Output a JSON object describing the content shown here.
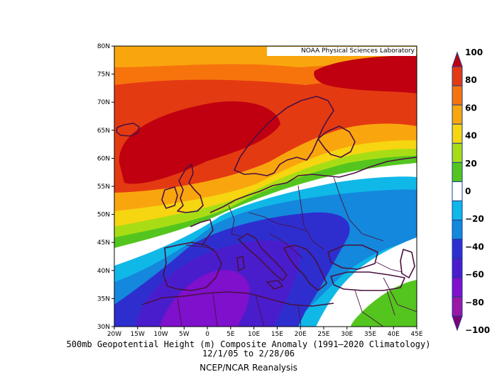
{
  "map": {
    "credit": "NOAA Physical Sciences Laboratory",
    "lat_labels": [
      "80N",
      "75N",
      "70N",
      "65N",
      "60N",
      "55N",
      "50N",
      "45N",
      "40N",
      "35N",
      "30N"
    ],
    "lon_labels": [
      "20W",
      "15W",
      "10W",
      "5W",
      "0",
      "5E",
      "10E",
      "15E",
      "20E",
      "25E",
      "30E",
      "35E",
      "40E",
      "45E"
    ],
    "extent": {
      "lon_min": -20,
      "lon_max": 45,
      "lat_min": 30,
      "lat_max": 80
    }
  },
  "colorbar": {
    "labels": [
      "100",
      "80",
      "60",
      "40",
      "20",
      "0",
      "−20",
      "−40",
      "−60",
      "−80",
      "−100"
    ],
    "colors": [
      "#c00010",
      "#e43a12",
      "#f7740d",
      "#f9a60e",
      "#f6d511",
      "#a8dd15",
      "#54c51e",
      "#ffffff",
      "#10b8e8",
      "#1488dc",
      "#2e2ecf",
      "#4a1dcc",
      "#7f10cc",
      "#9a16a4",
      "#80007a"
    ],
    "outline_color": "#1a3c8a"
  },
  "caption": {
    "line1": "500mb Geopotential Height (m) Composite Anomaly (1991–2020 Climatology)",
    "line2": "12/1/05   to 2/28/06",
    "line3": "NCEP/NCAR Reanalysis"
  }
}
